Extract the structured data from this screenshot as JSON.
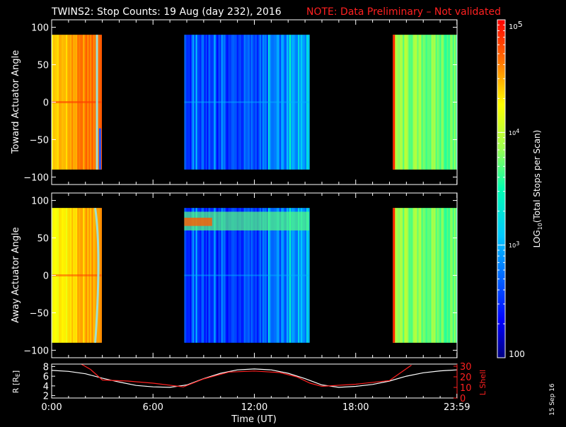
{
  "title": "TWINS2: Stop Counts: 19 Aug (day 232), 2016",
  "note": "NOTE: Data Preliminary – Not validated",
  "side_date": "15 Sep 16",
  "colors": {
    "note": "#ff2020",
    "ephem": "#ff2020",
    "text": "#ffffff",
    "background": "#000000"
  },
  "chart_data": [
    {
      "type": "heatmap",
      "panel": "toward",
      "ylabel": "Toward Actuator Angle",
      "ylim": [
        -110,
        110
      ],
      "yticks": [
        -100,
        -50,
        0,
        50,
        100
      ],
      "data_y_range": [
        -90,
        90
      ],
      "x_unit": "hours UT",
      "xlim": [
        0,
        24
      ],
      "colorscale": "log10 stops per scan, 100 to 1e5",
      "segments": [
        {
          "start": 0.0,
          "end": 2.95,
          "level": 4.45,
          "note": "orange/red, streak near 2.6h"
        },
        {
          "start": 7.85,
          "end": 15.25,
          "level": 2.75,
          "note": "blue, cyan/yellow stripes toward 14-15h"
        },
        {
          "start": 20.2,
          "end": 23.99,
          "level": 3.7,
          "note": "yellow-green"
        }
      ]
    },
    {
      "type": "heatmap",
      "panel": "away",
      "ylabel": "Away Actuator Angle",
      "ylim": [
        -110,
        110
      ],
      "yticks": [
        -100,
        -50,
        0,
        50,
        100
      ],
      "data_y_range": [
        -90,
        90
      ],
      "x_unit": "hours UT",
      "xlim": [
        0,
        24
      ],
      "colorscale": "log10 stops per scan, 100 to 1e5",
      "segments": [
        {
          "start": 0.0,
          "end": 2.95,
          "level": 4.3,
          "note": "orange/yellow"
        },
        {
          "start": 7.85,
          "end": 15.25,
          "level": 2.7,
          "note": "blue, cyan/yellow band near +70"
        },
        {
          "start": 20.2,
          "end": 23.99,
          "level": 3.7,
          "note": "yellow-green"
        }
      ]
    },
    {
      "type": "line",
      "panel": "ephemeris",
      "x_unit": "hours UT",
      "xlim": [
        0,
        24
      ],
      "xticks": [
        "0:00",
        "6:00",
        "12:00",
        "18:00",
        "23:59"
      ],
      "xlabel": "Time (UT)",
      "left_axis": {
        "label": "R [RE]",
        "ylim": [
          1.5,
          8.5
        ],
        "yticks": [
          2,
          4,
          6,
          8
        ]
      },
      "right_axis": {
        "label": "L Shell",
        "ylim": [
          0,
          32
        ],
        "yticks": [
          0,
          10,
          20,
          30
        ]
      },
      "series": [
        {
          "axis": "left",
          "color": "#ffffff",
          "x": [
            0,
            1,
            2,
            3,
            4,
            5,
            6,
            7,
            8,
            9,
            10,
            11,
            12,
            13,
            14,
            15,
            16,
            17,
            18,
            19,
            20,
            21,
            22,
            23,
            23.99
          ],
          "y": [
            7.2,
            7.0,
            6.5,
            5.6,
            4.8,
            4.1,
            3.8,
            3.7,
            4.2,
            5.5,
            6.6,
            7.3,
            7.5,
            7.3,
            6.6,
            5.5,
            4.2,
            3.7,
            3.9,
            4.3,
            5.0,
            6.0,
            6.7,
            7.1,
            7.3
          ]
        },
        {
          "axis": "right",
          "color": "#ff2020",
          "x": [
            1.75,
            2.3,
            3.0,
            4.5,
            6.0,
            7.8,
            9.0,
            10.5,
            12.0,
            13.5,
            14.5,
            15.3,
            16.0,
            18.0,
            20.0,
            21.3
          ],
          "y": [
            32,
            27,
            17,
            16,
            14,
            10.5,
            18,
            24.5,
            25.5,
            24,
            20,
            14,
            11,
            13,
            16.5,
            31
          ]
        }
      ]
    }
  ],
  "colorbar": {
    "label": "LOG10(Total Stops per Scan)",
    "tick_labels": [
      "10^5",
      "10^4",
      "10^3",
      "100"
    ],
    "min": 100,
    "max": 100000
  },
  "tick_text": {
    "heat_y": [
      "100",
      "50",
      "0",
      "−50",
      "−100"
    ],
    "cb_10": "10",
    "cb_e5": "5",
    "cb_e4": "4",
    "cb_e3": "3",
    "cb_100": "100",
    "eph_left": [
      "8",
      "6",
      "4",
      "2"
    ],
    "eph_right": [
      "30",
      "20",
      "10",
      "0"
    ],
    "eph_left_label_R": "R [R",
    "eph_left_label_E": "E",
    "eph_left_label_end": "]",
    "eph_right_label": "L Shell",
    "cb_label_pre": "LOG",
    "cb_label_sub": "10",
    "cb_label_post": "(Total Stops per Scan)"
  }
}
